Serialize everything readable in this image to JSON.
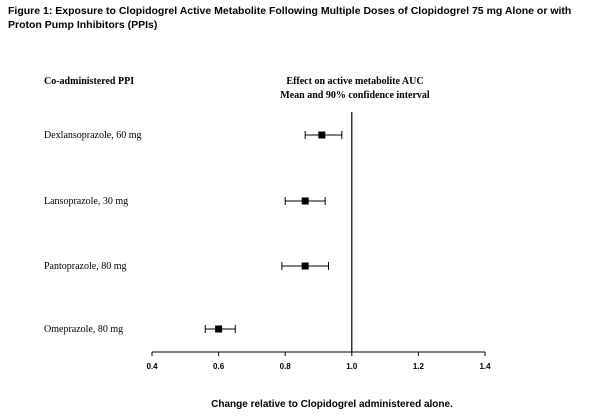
{
  "figure": {
    "title": "Figure 1: Exposure to Clopidogrel Active Metabolite Following Multiple Doses of Clopidogrel 75 mg Alone or with Proton Pump Inhibitors (PPIs)"
  },
  "chart_data": {
    "type": "forest",
    "column_header_left": "Co-administered PPI",
    "column_header_right_line1": "Effect on active metabolite AUC",
    "column_header_right_line2": "Mean and 90% confidence interval",
    "xlabel": "Change relative to Clopidogrel administered alone.",
    "xlim": [
      0.4,
      1.4
    ],
    "x_ticks": [
      0.4,
      0.6,
      0.8,
      1.0,
      1.2,
      1.4
    ],
    "x_tick_labels": [
      "0.4",
      "0.6",
      "0.8",
      "1.0",
      "1.2",
      "1.4"
    ],
    "reference_line": 1.0,
    "grid": false,
    "rows": [
      {
        "label": "Dexlansoprazole, 60 mg",
        "mean": 0.91,
        "ci_low": 0.86,
        "ci_high": 0.97
      },
      {
        "label": "Lansoprazole, 30 mg",
        "mean": 0.86,
        "ci_low": 0.8,
        "ci_high": 0.92
      },
      {
        "label": "Pantoprazole, 80 mg",
        "mean": 0.86,
        "ci_low": 0.79,
        "ci_high": 0.93
      },
      {
        "label": "Omeprazole, 80 mg",
        "mean": 0.6,
        "ci_low": 0.56,
        "ci_high": 0.65
      }
    ]
  }
}
